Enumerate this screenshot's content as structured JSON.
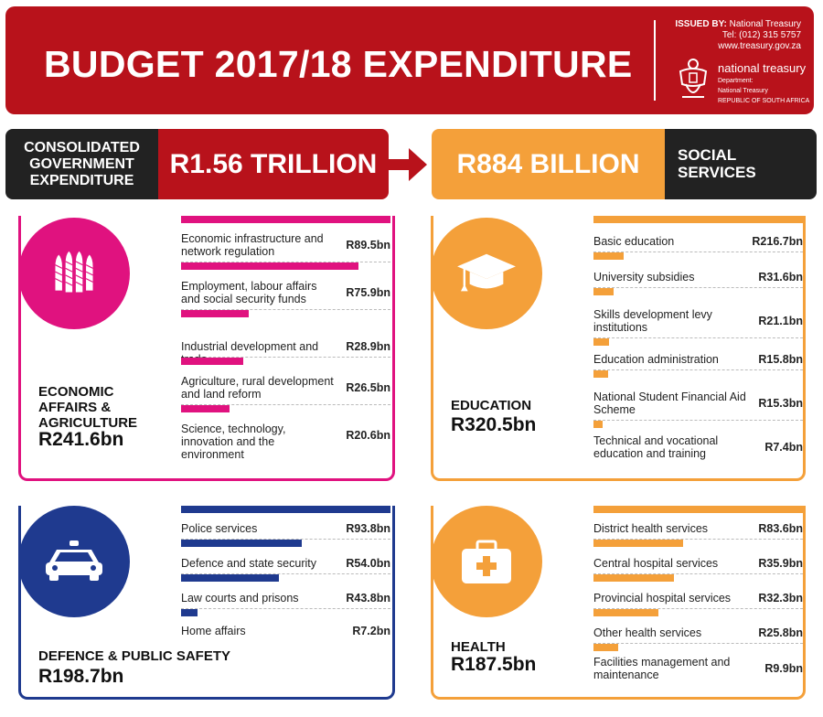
{
  "header": {
    "title": "BUDGET 2017/18 EXPENDITURE",
    "issued_label": "ISSUED BY:",
    "issued_by": "National Treasury",
    "tel": "Tel: (012) 315 5757",
    "website": "www.treasury.gov.za",
    "logo_name": "national treasury",
    "logo_sub1": "Department:",
    "logo_sub2": "National Treasury",
    "logo_sub3": "REPUBLIC OF SOUTH AFRICA"
  },
  "summary": {
    "left_label": "CONSOLIDATED GOVERNMENT EXPENDITURE",
    "left_value": "R1.56 TRILLION",
    "right_value": "R884 BILLION",
    "right_label": "SOCIAL SERVICES"
  },
  "colors": {
    "red": "#b8121b",
    "magenta": "#e0127f",
    "navy": "#1f3a8f",
    "orange": "#f4a03a",
    "dark": "#222222"
  },
  "chart_data": [
    {
      "type": "bar",
      "title": "ECONOMIC AFFAIRS & AGRICULTURE",
      "total": "R241.6bn",
      "icon": "wheat-icon",
      "color": "#e0127f",
      "unit": "R bn",
      "categories": [
        "Economic infrastructure and network regulation",
        "Employment, labour affairs and social security funds",
        "Industrial development and trade",
        "Agriculture, rural development and land reform",
        "Science, technology, innovation and the environment"
      ],
      "values": [
        89.5,
        75.9,
        28.9,
        26.5,
        20.6
      ],
      "labels": [
        "R89.5bn",
        "R75.9bn",
        "R28.9bn",
        "R26.5bn",
        "R20.6bn"
      ]
    },
    {
      "type": "bar",
      "title": "EDUCATION",
      "total": "R320.5bn",
      "icon": "graduation-cap-icon",
      "color": "#f4a03a",
      "unit": "R bn",
      "categories": [
        "Basic education",
        "University subsidies",
        "Skills development levy institutions",
        "Education administration",
        "National Student Financial Aid Scheme",
        "Technical and vocational education and training"
      ],
      "values": [
        216.7,
        31.6,
        21.1,
        15.8,
        15.3,
        7.4
      ],
      "labels": [
        "R216.7bn",
        "R31.6bn",
        "R21.1bn",
        "R15.8bn",
        "R15.3bn",
        "R7.4bn"
      ]
    },
    {
      "type": "bar",
      "title": "DEFENCE & PUBLIC SAFETY",
      "total": "R198.7bn",
      "icon": "police-car-icon",
      "color": "#1f3a8f",
      "unit": "R bn",
      "categories": [
        "Police services",
        "Defence and state security",
        "Law courts and prisons",
        "Home affairs"
      ],
      "values": [
        93.8,
        54.0,
        43.8,
        7.2
      ],
      "labels": [
        "R93.8bn",
        "R54.0bn",
        "R43.8bn",
        "R7.2bn"
      ]
    },
    {
      "type": "bar",
      "title": "HEALTH",
      "total": "R187.5bn",
      "icon": "medical-kit-icon",
      "color": "#f4a03a",
      "unit": "R bn",
      "categories": [
        "District health services",
        "Central hospital services",
        "Provincial hospital services",
        "Other health services",
        "Facilities management and maintenance"
      ],
      "values": [
        83.6,
        35.9,
        32.3,
        25.8,
        9.9
      ],
      "labels": [
        "R83.6bn",
        "R35.9bn",
        "R32.3bn",
        "R25.8bn",
        "R9.9bn"
      ]
    }
  ]
}
